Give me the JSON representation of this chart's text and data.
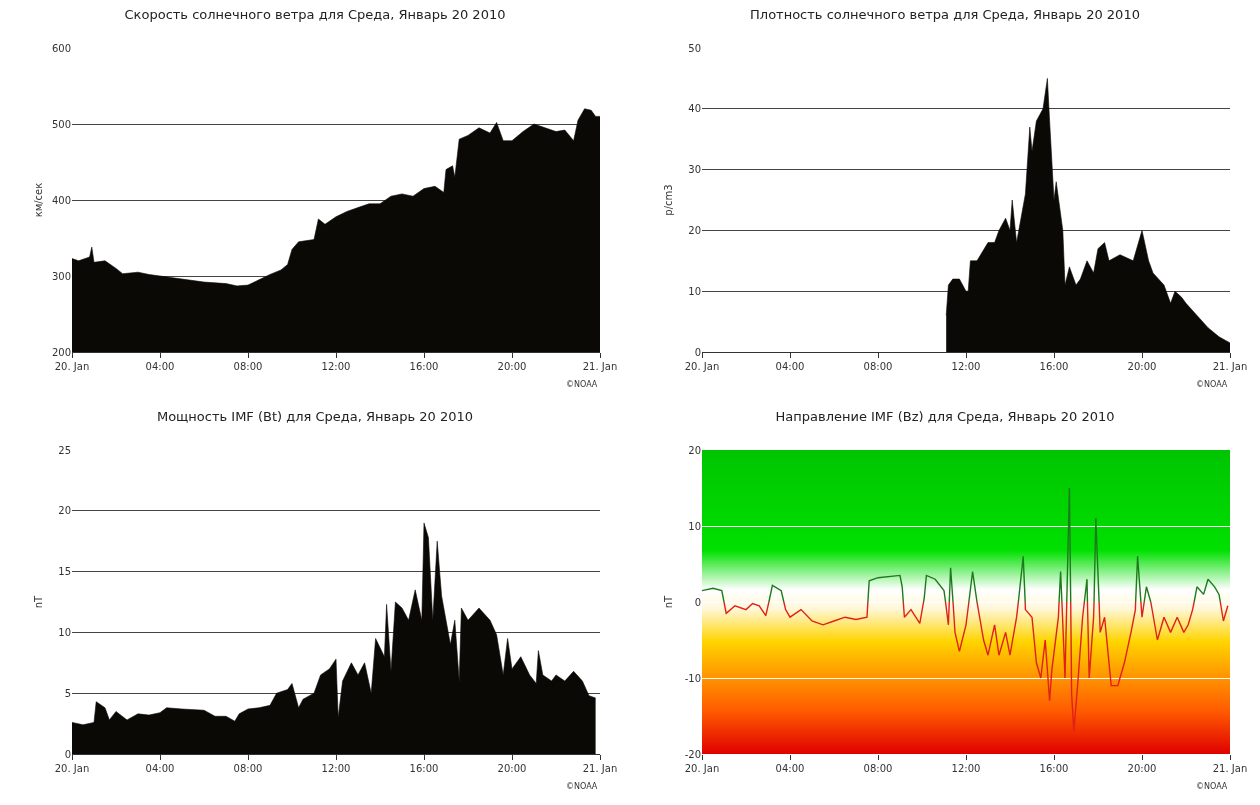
{
  "chart_data": [
    {
      "type": "area",
      "title": "Скорость солнечного ветра для Среда, Январь 20 2010",
      "ylabel": "км/сек",
      "annotations": [
        "©NOAA"
      ],
      "x": [
        0,
        0.3,
        0.8,
        0.9,
        1.0,
        1.5,
        2,
        2.3,
        3,
        3.5,
        4,
        5,
        6,
        7,
        7.5,
        8,
        8.5,
        9,
        9.5,
        9.8,
        10,
        10.3,
        11,
        11.2,
        11.5,
        12,
        12.5,
        13,
        13.5,
        14,
        14.5,
        15,
        15.5,
        16,
        16.5,
        16.9,
        17,
        17.3,
        17.4,
        17.6,
        18,
        18.5,
        19,
        19.3,
        19.6,
        20,
        20.5,
        21,
        21.5,
        22,
        22.4,
        22.8,
        23,
        23.3,
        23.6,
        23.8,
        24
      ],
      "series": [
        {
          "color": "#0b0905",
          "values": [
            323,
            320,
            325,
            338,
            318,
            320,
            310,
            303,
            305,
            302,
            300,
            296,
            292,
            290,
            287,
            288,
            295,
            302,
            308,
            315,
            335,
            345,
            348,
            375,
            368,
            378,
            385,
            390,
            395,
            395,
            405,
            408,
            405,
            415,
            418,
            410,
            440,
            445,
            430,
            480,
            485,
            495,
            488,
            502,
            478,
            478,
            490,
            500,
            495,
            490,
            492,
            478,
            505,
            520,
            518,
            510,
            510
          ]
        }
      ],
      "xlim": [
        0,
        24
      ],
      "xticks": [
        {
          "value": 0,
          "label": "20. Jan"
        },
        {
          "value": 4,
          "label": "04:00"
        },
        {
          "value": 8,
          "label": "08:00"
        },
        {
          "value": 12,
          "label": "12:00"
        },
        {
          "value": 16,
          "label": "16:00"
        },
        {
          "value": 20,
          "label": "20:00"
        },
        {
          "value": 24,
          "label": "21. Jan"
        }
      ],
      "ylim": [
        200,
        600
      ],
      "yticks": [
        200,
        300,
        400,
        500,
        600
      ],
      "grid": "y"
    },
    {
      "type": "area",
      "title": "Плотность солнечного ветра для Среда, Январь 20 2010",
      "ylabel": "p/cm3",
      "annotations": [
        "©NOAA"
      ],
      "x": [
        11.1,
        11.2,
        11.4,
        11.7,
        12.0,
        12.1,
        12.2,
        12.5,
        13,
        13.3,
        13.5,
        13.8,
        14,
        14.1,
        14.3,
        14.5,
        14.7,
        14.9,
        15.0,
        15.2,
        15.5,
        15.7,
        15.8,
        16,
        16.1,
        16.4,
        16.5,
        16.7,
        17,
        17.2,
        17.5,
        17.8,
        18,
        18.3,
        18.5,
        19,
        19.6,
        20,
        20.3,
        20.5,
        21,
        21.3,
        21.5,
        21.8,
        22,
        22.5,
        23,
        23.5,
        24
      ],
      "series": [
        {
          "color": "#0b0905",
          "values": [
            6,
            11,
            12,
            12,
            10,
            10,
            15,
            15,
            18,
            18,
            20,
            22,
            20,
            25,
            18,
            22,
            26,
            37,
            33,
            38,
            40,
            45,
            38,
            25,
            28,
            20,
            11,
            14,
            11,
            12,
            15,
            13,
            17,
            18,
            15,
            16,
            15,
            20,
            15,
            13,
            11,
            8,
            10,
            9,
            8,
            6,
            4,
            2.5,
            1.5
          ]
        }
      ],
      "xlim": [
        0,
        24
      ],
      "xticks": [
        {
          "value": 0,
          "label": "20. Jan"
        },
        {
          "value": 4,
          "label": "04:00"
        },
        {
          "value": 8,
          "label": "08:00"
        },
        {
          "value": 12,
          "label": "12:00"
        },
        {
          "value": 16,
          "label": "16:00"
        },
        {
          "value": 20,
          "label": "20:00"
        },
        {
          "value": 24,
          "label": "21. Jan"
        }
      ],
      "ylim": [
        0,
        50
      ],
      "yticks": [
        0,
        10,
        20,
        30,
        40,
        50
      ],
      "grid": "y"
    },
    {
      "type": "area",
      "title": "Мощность IMF (Bt) для Среда, Январь 20 2010",
      "ylabel": "nT",
      "annotations": [
        "©NOAA"
      ],
      "x": [
        0,
        0.5,
        1,
        1.1,
        1.5,
        1.7,
        2,
        2.5,
        3,
        3.5,
        4,
        4.3,
        5,
        6,
        6.5,
        7,
        7.4,
        7.6,
        8,
        8.5,
        9,
        9.3,
        9.8,
        10,
        10.3,
        10.5,
        11,
        11.3,
        11.7,
        12,
        12.1,
        12.3,
        12.7,
        13,
        13.3,
        13.6,
        13.8,
        14.2,
        14.3,
        14.5,
        14.7,
        15,
        15.3,
        15.6,
        15.9,
        16,
        16.2,
        16.4,
        16.6,
        16.8,
        17,
        17.2,
        17.4,
        17.6,
        17.7,
        18,
        18.5,
        19,
        19.3,
        19.6,
        19.8,
        20,
        20.4,
        20.8,
        21.1,
        21.2,
        21.4,
        21.8,
        22,
        22.4,
        22.8,
        23.2,
        23.5,
        23.8
      ],
      "series": [
        {
          "color": "#0b0905",
          "values": [
            2.6,
            2.4,
            2.6,
            4.3,
            3.8,
            2.8,
            3.5,
            2.8,
            3.3,
            3.2,
            3.4,
            3.8,
            3.7,
            3.6,
            3.1,
            3.1,
            2.7,
            3.3,
            3.7,
            3.8,
            4.0,
            5.0,
            5.3,
            5.8,
            3.8,
            4.5,
            5.0,
            6.5,
            7.0,
            7.8,
            3.0,
            6.0,
            7.5,
            6.5,
            7.5,
            5.0,
            9.5,
            8.0,
            12.3,
            6.8,
            12.5,
            12,
            11,
            13.5,
            11,
            19,
            17.8,
            11,
            17.5,
            13,
            11,
            9,
            11,
            6,
            12,
            11,
            12,
            11,
            9.8,
            6.5,
            9.5,
            7,
            8.0,
            6.5,
            5.8,
            8.5,
            6.5,
            6.0,
            6.5,
            6,
            6.8,
            6.0,
            4.8,
            4.6
          ]
        }
      ],
      "xlim": [
        0,
        24
      ],
      "xticks": [
        {
          "value": 0,
          "label": "20. Jan"
        },
        {
          "value": 4,
          "label": "04:00"
        },
        {
          "value": 8,
          "label": "08:00"
        },
        {
          "value": 12,
          "label": "12:00"
        },
        {
          "value": 16,
          "label": "16:00"
        },
        {
          "value": 20,
          "label": "20:00"
        },
        {
          "value": 24,
          "label": "21. Jan"
        }
      ],
      "ylim": [
        0,
        25
      ],
      "yticks": [
        0,
        5,
        10,
        15,
        20,
        25
      ],
      "grid": "y"
    },
    {
      "type": "line",
      "title": "Направление IMF (Bz) для Среда, Январь 20 2010",
      "ylabel": "nT",
      "annotations": [
        "©NOAA"
      ],
      "series": [
        {
          "color": "#1e7a1e",
          "x": [
            0,
            0.5,
            0.9,
            1.0,
            2.0,
            3.04,
            3.2,
            3.6,
            3.72,
            5,
            7.54,
            7.6,
            8.0,
            9.0,
            9.1,
            9.15,
            9.5,
            10.07,
            10.1,
            10.2,
            10.6,
            11.0,
            11.07,
            11.1,
            11.24,
            11.3,
            11.41,
            11.7,
            12.13,
            12.3,
            12.5,
            13,
            14.38,
            14.6,
            14.69,
            15,
            16.23,
            16.3,
            16.36,
            16.4,
            16.58,
            16.7,
            16.76,
            17,
            17.38,
            17.5,
            17.52,
            17.6,
            17.82,
            17.9,
            18.05,
            19,
            19.71,
            19.8,
            19.95,
            20.0,
            20.1,
            20.2,
            20.4,
            21,
            22.37,
            22.5,
            22.8,
            23.0,
            23.3,
            23.5,
            23.56
          ],
          "values": [
            1.5,
            1.8,
            1.5,
            0,
            null,
            0,
            2.2,
            1.5,
            0,
            null,
            0,
            2.8,
            3.2,
            3.5,
            2.0,
            0,
            null,
            0,
            0.5,
            3.5,
            3.0,
            1.5,
            0,
            null,
            0,
            4.5,
            0,
            null,
            0,
            4,
            0,
            null,
            0,
            6,
            0,
            null,
            0,
            4,
            0,
            null,
            0,
            15,
            0,
            null,
            0,
            3,
            0,
            null,
            0,
            11,
            0,
            null,
            0,
            6,
            0,
            null,
            0,
            2,
            0,
            null,
            0,
            2,
            1,
            3,
            2,
            1,
            0
          ]
        },
        {
          "color": "#e0201a",
          "x": [
            1.0,
            1.1,
            1.5,
            2,
            2.3,
            2.6,
            2.9,
            3.0,
            3.04,
            3.4,
            3.72,
            3.8,
            4.0,
            4.5,
            5.0,
            5.5,
            6.0,
            6.5,
            7.0,
            7.5,
            7.54,
            8.5,
            9.15,
            9.2,
            9.5,
            9.9,
            10.07,
            10.5,
            11.07,
            11.2,
            11.24,
            11.35,
            11.41,
            11.5,
            11.7,
            12.0,
            12.13,
            12.2,
            12.5,
            12.8,
            13.0,
            13.3,
            13.5,
            13.8,
            14.0,
            14.3,
            14.38,
            14.5,
            14.69,
            14.7,
            15.0,
            15.2,
            15.4,
            15.6,
            15.8,
            15.9,
            16.2,
            16.23,
            16.3,
            16.36,
            16.5,
            16.58,
            16.65,
            16.76,
            16.8,
            16.9,
            17.1,
            17.3,
            17.38,
            17.45,
            17.52,
            17.6,
            17.8,
            17.82,
            17.85,
            18.05,
            18.1,
            18.3,
            18.6,
            18.9,
            19.2,
            19.5,
            19.7,
            19.71,
            19.75,
            19.95,
            20.0,
            20.1,
            20.3,
            20.4,
            20.7,
            21.0,
            21.3,
            21.6,
            21.9,
            22.1,
            22.3,
            22.37,
            23,
            23.56,
            23.7,
            23.9
          ],
          "values": [
            0,
            -1.5,
            -0.5,
            -1.0,
            -0.2,
            -0.5,
            -1.8,
            -0.5,
            0,
            null,
            0,
            -1,
            -2,
            -1,
            -2.5,
            -3,
            -2.5,
            -2,
            -2.3,
            -2,
            0,
            null,
            0,
            -2,
            -1,
            -2.8,
            0,
            null,
            0,
            -3,
            0,
            null,
            0,
            -4,
            -6.5,
            -3,
            0,
            null,
            0,
            -5,
            -7,
            -3,
            -7,
            -4,
            -7,
            -2,
            0,
            null,
            0,
            -1,
            -2,
            -8,
            -10,
            -5,
            -13,
            -9,
            -2,
            0,
            null,
            0,
            -10,
            0,
            null,
            0,
            -12,
            -17,
            -10,
            -2,
            0,
            null,
            0,
            -10,
            -2,
            0,
            null,
            0,
            -4,
            -2,
            -11,
            -11,
            -8,
            -4,
            -1,
            0,
            null,
            0,
            -2,
            0,
            null,
            0,
            -5,
            -2,
            -4,
            -2,
            -4,
            -3,
            -1,
            0,
            null,
            0,
            -2.5,
            -0.5
          ]
        }
      ],
      "xlim": [
        0,
        24
      ],
      "xticks": [
        {
          "value": 0,
          "label": "20. Jan"
        },
        {
          "value": 4,
          "label": "04:00"
        },
        {
          "value": 8,
          "label": "08:00"
        },
        {
          "value": 12,
          "label": "12:00"
        },
        {
          "value": 16,
          "label": "16:00"
        },
        {
          "value": 20,
          "label": "20:00"
        },
        {
          "value": 24,
          "label": "21. Jan"
        }
      ],
      "ylim": [
        -20,
        20
      ],
      "yticks": [
        -20,
        -10,
        0,
        10,
        20
      ],
      "grid": "y"
    }
  ]
}
